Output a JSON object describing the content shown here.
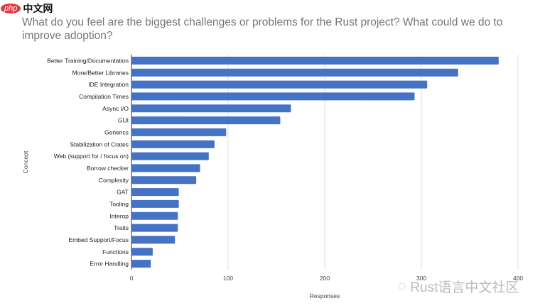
{
  "watermark_top": {
    "php": "php",
    "cn": "中文网"
  },
  "watermark_bottom": "Rust语言中文社区",
  "chart_data": {
    "type": "bar",
    "orientation": "horizontal",
    "title": "What do you feel are the biggest challenges or problems for the Rust project? What could we do to improve adoption?",
    "xlabel": "Responses",
    "ylabel": "Concept",
    "xlim": [
      0,
      400
    ],
    "xticks": [
      0,
      100,
      200,
      300,
      400
    ],
    "grid": true,
    "color": "#4472c4",
    "categories": [
      "Better Training/Documentation",
      "More/Better Libraries",
      "IDE Integration",
      "Compilation Times",
      "Async I/O",
      "GUI",
      "Generics",
      "Stabilization of Crates",
      "Web (support for / focus on)",
      "Borrow checker",
      "Complexity",
      "GAT",
      "Tooling",
      "Interop",
      "Traits",
      "Embed Support/Focus",
      "Functions",
      "Error Handling"
    ],
    "values": [
      380,
      338,
      306,
      293,
      165,
      154,
      98,
      86,
      80,
      71,
      67,
      49,
      49,
      48,
      48,
      45,
      22,
      20
    ]
  }
}
